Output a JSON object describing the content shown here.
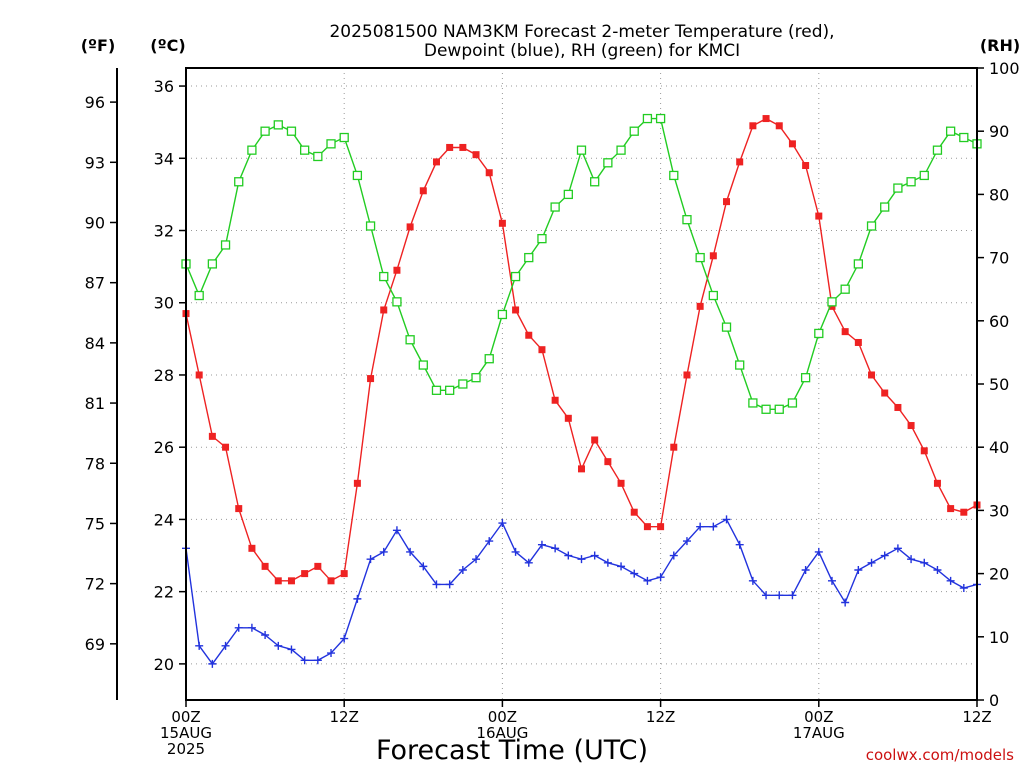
{
  "page": {
    "title_line1": "2025081500 NAM3KM Forecast 2-meter Temperature (red),",
    "title_line2": "Dewpoint (blue), RH (green) for KMCI",
    "footer": "coolwx.com/models"
  },
  "chart_data": {
    "type": "line",
    "title": "2025081500 NAM3KM Forecast 2-meter Temperature (red), Dewpoint (blue), RH (green) for KMCI",
    "xlabel": "Forecast Time (UTC)",
    "x_unit": "forecast hour",
    "x_range": [
      0,
      60
    ],
    "x_ticks": [
      {
        "x": 0,
        "lines": [
          "00Z",
          "15AUG",
          "2025"
        ]
      },
      {
        "x": 12,
        "lines": [
          "12Z"
        ]
      },
      {
        "x": 24,
        "lines": [
          "00Z",
          "16AUG"
        ]
      },
      {
        "x": 36,
        "lines": [
          "12Z"
        ]
      },
      {
        "x": 48,
        "lines": [
          "00Z",
          "17AUG"
        ]
      },
      {
        "x": 60,
        "lines": [
          "12Z"
        ]
      }
    ],
    "y_axis_c": {
      "label": "(ºC)",
      "range": [
        19,
        36.5
      ],
      "ticks": [
        20,
        22,
        24,
        26,
        28,
        30,
        32,
        34,
        36
      ]
    },
    "y_axis_f": {
      "label": "(ºF)",
      "ticks": [
        69,
        72,
        75,
        78,
        81,
        84,
        87,
        90,
        93,
        96
      ]
    },
    "y_axis_rh": {
      "label": "(RH)",
      "range": [
        0,
        100
      ],
      "ticks": [
        0,
        10,
        20,
        30,
        40,
        50,
        60,
        70,
        80,
        90,
        100
      ]
    },
    "grid": true,
    "series": [
      {
        "name": "2-meter Temperature",
        "color": "#ee2222",
        "axis": "celsius",
        "marker": "filled-square",
        "x": [
          0,
          1,
          2,
          3,
          4,
          5,
          6,
          7,
          8,
          9,
          10,
          11,
          12,
          13,
          14,
          15,
          16,
          17,
          18,
          19,
          20,
          21,
          22,
          23,
          24,
          25,
          26,
          27,
          28,
          29,
          30,
          31,
          32,
          33,
          34,
          35,
          36,
          37,
          38,
          39,
          40,
          41,
          42,
          43,
          44,
          45,
          46,
          47,
          48,
          49,
          50,
          51,
          52,
          53,
          54,
          55,
          56,
          57,
          58,
          59,
          60
        ],
        "values": [
          29.7,
          28.0,
          26.3,
          26.0,
          24.3,
          23.2,
          22.7,
          22.3,
          22.3,
          22.5,
          22.7,
          22.3,
          22.5,
          25.0,
          27.9,
          29.8,
          30.9,
          32.1,
          33.1,
          33.9,
          34.3,
          34.3,
          34.1,
          33.6,
          32.2,
          29.8,
          29.1,
          28.7,
          27.3,
          26.8,
          25.4,
          26.2,
          25.6,
          25.0,
          24.2,
          23.8,
          23.8,
          26.0,
          28.0,
          29.9,
          31.3,
          32.8,
          33.9,
          34.9,
          35.1,
          34.9,
          34.4,
          33.8,
          32.4,
          29.9,
          29.2,
          28.9,
          28.0,
          27.5,
          27.1,
          26.6,
          25.9,
          25.0,
          24.3,
          24.2,
          24.4
        ]
      },
      {
        "name": "Dewpoint",
        "color": "#2233dd",
        "axis": "celsius",
        "marker": "plus",
        "x": [
          0,
          1,
          2,
          3,
          4,
          5,
          6,
          7,
          8,
          9,
          10,
          11,
          12,
          13,
          14,
          15,
          16,
          17,
          18,
          19,
          20,
          21,
          22,
          23,
          24,
          25,
          26,
          27,
          28,
          29,
          30,
          31,
          32,
          33,
          34,
          35,
          36,
          37,
          38,
          39,
          40,
          41,
          42,
          43,
          44,
          45,
          46,
          47,
          48,
          49,
          50,
          51,
          52,
          53,
          54,
          55,
          56,
          57,
          58,
          59,
          60
        ],
        "values": [
          23.2,
          20.5,
          20.0,
          20.5,
          21.0,
          21.0,
          20.8,
          20.5,
          20.4,
          20.1,
          20.1,
          20.3,
          20.7,
          21.8,
          22.9,
          23.1,
          23.7,
          23.1,
          22.7,
          22.2,
          22.2,
          22.6,
          22.9,
          23.4,
          23.9,
          23.1,
          22.8,
          23.3,
          23.2,
          23.0,
          22.9,
          23.0,
          22.8,
          22.7,
          22.5,
          22.3,
          22.4,
          23.0,
          23.4,
          23.8,
          23.8,
          24.0,
          23.3,
          22.3,
          21.9,
          21.9,
          21.9,
          22.6,
          23.1,
          22.3,
          21.7,
          22.6,
          22.8,
          23.0,
          23.2,
          22.9,
          22.8,
          22.6,
          22.3,
          22.1,
          22.2
        ]
      },
      {
        "name": "RH",
        "color": "#22cc22",
        "axis": "rh",
        "marker": "open-square",
        "x": [
          0,
          1,
          2,
          3,
          4,
          5,
          6,
          7,
          8,
          9,
          10,
          11,
          12,
          13,
          14,
          15,
          16,
          17,
          18,
          19,
          20,
          21,
          22,
          23,
          24,
          25,
          26,
          27,
          28,
          29,
          30,
          31,
          32,
          33,
          34,
          35,
          36,
          37,
          38,
          39,
          40,
          41,
          42,
          43,
          44,
          45,
          46,
          47,
          48,
          49,
          50,
          51,
          52,
          53,
          54,
          55,
          56,
          57,
          58,
          59,
          60
        ],
        "values": [
          69,
          64,
          69,
          72,
          82,
          87,
          90,
          91,
          90,
          87,
          86,
          88,
          89,
          83,
          75,
          67,
          63,
          57,
          53,
          49,
          49,
          50,
          51,
          54,
          61,
          67,
          70,
          73,
          78,
          80,
          87,
          82,
          85,
          87,
          90,
          92,
          92,
          83,
          76,
          70,
          64,
          59,
          53,
          47,
          46,
          46,
          47,
          51,
          58,
          63,
          65,
          69,
          75,
          78,
          81,
          82,
          83,
          87,
          90,
          89,
          88
        ]
      }
    ]
  }
}
